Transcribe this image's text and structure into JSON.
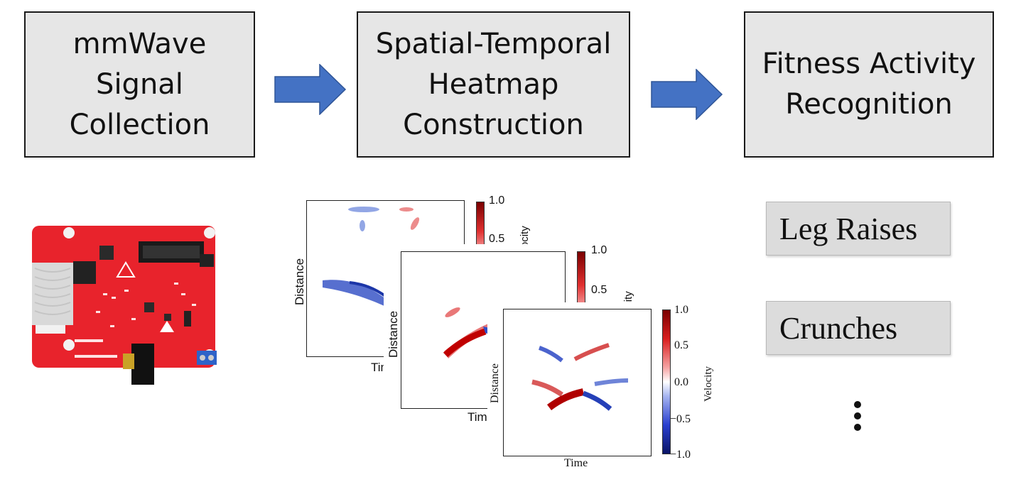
{
  "pipeline": {
    "stages": [
      {
        "lines": [
          "mmWave",
          "Signal",
          "Collection"
        ]
      },
      {
        "lines": [
          "Spatial-Temporal",
          "Heatmap",
          "Construction"
        ]
      },
      {
        "lines": [
          "Fitness Activity",
          "Recognition"
        ]
      }
    ]
  },
  "heatmaps": {
    "back": {
      "xlabel": "Time",
      "ylabel": "Distance",
      "colorbar_ticks": [
        "1.0",
        "0.5"
      ],
      "colorbar_label": "Velocity"
    },
    "middle": {
      "xlabel": "Time",
      "ylabel": "Distance",
      "colorbar_ticks": [
        "1.0",
        "0.5"
      ],
      "colorbar_label": "Velocity"
    },
    "front": {
      "xlabel": "Time",
      "ylabel": "Distance",
      "colorbar_ticks": [
        "1.0",
        "0.5",
        "0.0",
        "−0.5",
        "−1.0"
      ],
      "colorbar_label": "Velocity"
    }
  },
  "activities": {
    "items": [
      "Leg Raises",
      "Crunches"
    ]
  },
  "colors": {
    "stage_fill": "#e6e6e6",
    "arrow_fill": "#4472c4",
    "board_red": "#e8232c",
    "heat_red": "#d01c1c",
    "heat_blue": "#1f3fbf"
  }
}
